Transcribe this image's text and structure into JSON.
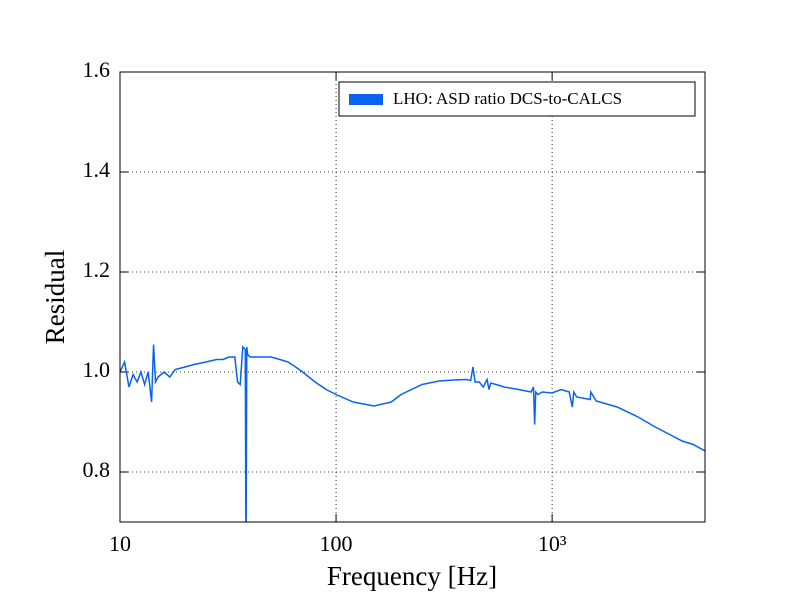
{
  "chart_data": {
    "type": "line",
    "xlabel": "Frequency [Hz]",
    "ylabel": "Residual",
    "log_x": true,
    "grid": true,
    "legend_position": "upper right",
    "xlim": [
      10,
      5100
    ],
    "ylim": [
      0.7,
      1.6
    ],
    "xticks": [
      10,
      100,
      {
        "value": 1000,
        "label": "10³"
      }
    ],
    "yticks": [
      0.8,
      {
        "value": 1,
        "label": "1.0"
      },
      1.2,
      1.4,
      1.6
    ],
    "x": [
      10,
      10.5,
      11,
      11.5,
      12,
      12.5,
      13,
      13.5,
      14,
      14.3,
      14.6,
      15,
      16,
      17,
      18,
      20,
      22,
      25,
      28,
      30,
      32,
      34,
      35,
      36,
      37,
      38,
      38.3,
      38.6,
      39,
      40,
      45,
      50,
      55,
      60,
      65,
      70,
      80,
      90,
      100,
      120,
      150,
      180,
      200,
      250,
      300,
      350,
      400,
      420,
      430,
      440,
      460,
      480,
      500,
      510,
      520,
      550,
      600,
      700,
      800,
      820,
      830,
      840,
      860,
      900,
      1000,
      1100,
      1200,
      1240,
      1260,
      1300,
      1500,
      1510,
      1600,
      2000,
      2500,
      3000,
      3500,
      4000,
      4500,
      5100
    ],
    "series": [
      {
        "name": "LHO: ASD ratio DCS-to-CALCS",
        "color": "#0a62f0",
        "values": [
          1.0,
          1.02,
          0.97,
          0.995,
          0.98,
          1.0,
          0.975,
          1.0,
          0.94,
          1.055,
          0.98,
          0.99,
          1.0,
          0.99,
          1.005,
          1.01,
          1.015,
          1.02,
          1.025,
          1.025,
          1.03,
          1.03,
          0.98,
          0.975,
          1.05,
          1.045,
          0.6,
          1.05,
          1.035,
          1.03,
          1.03,
          1.03,
          1.025,
          1.02,
          1.01,
          1.0,
          0.98,
          0.965,
          0.955,
          0.94,
          0.932,
          0.94,
          0.955,
          0.975,
          0.982,
          0.984,
          0.985,
          0.983,
          1.01,
          0.98,
          0.98,
          0.97,
          0.985,
          0.965,
          0.978,
          0.975,
          0.97,
          0.965,
          0.96,
          0.97,
          0.895,
          0.96,
          0.955,
          0.96,
          0.958,
          0.965,
          0.96,
          0.93,
          0.96,
          0.95,
          0.945,
          0.96,
          0.942,
          0.93,
          0.91,
          0.89,
          0.875,
          0.862,
          0.855,
          0.842
        ]
      }
    ]
  }
}
